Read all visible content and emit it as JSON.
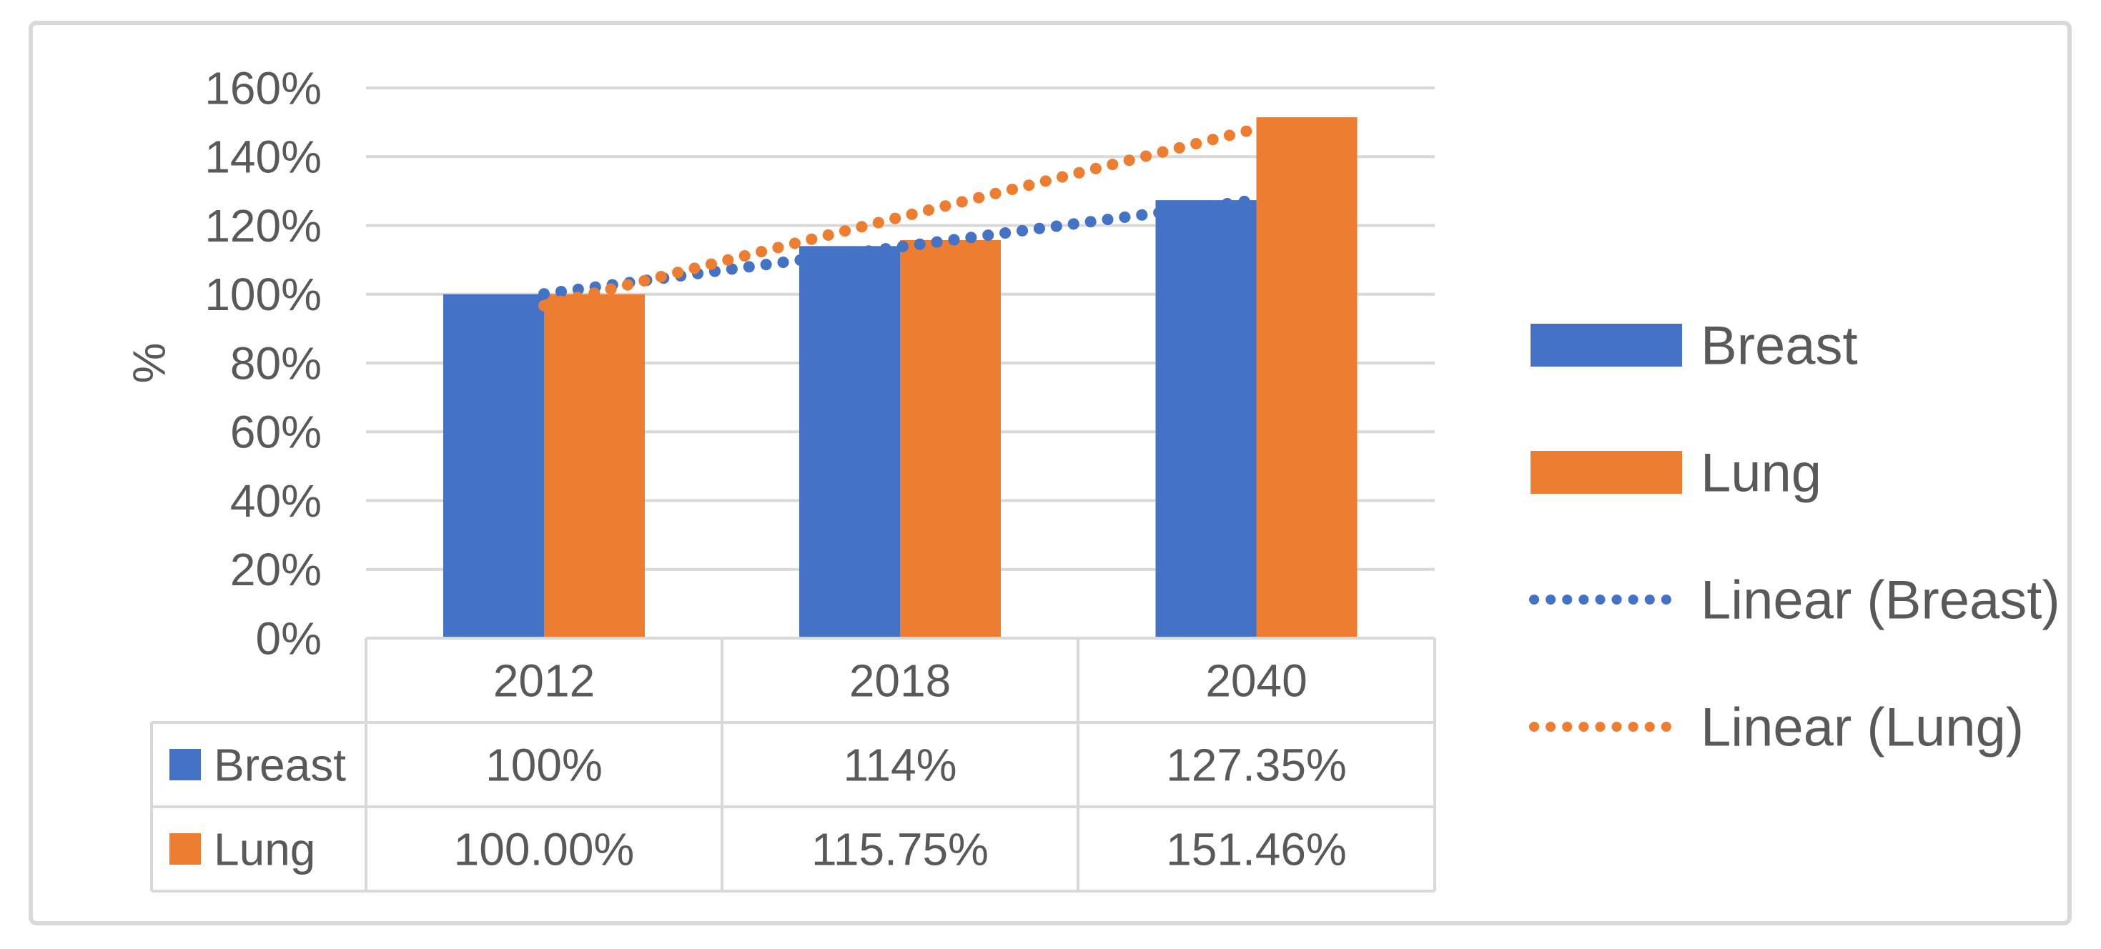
{
  "chart_data": {
    "type": "bar",
    "title": "",
    "categories": [
      "2012",
      "2018",
      "2040"
    ],
    "series": [
      {
        "name": "Breast",
        "color": "#4472C4",
        "values": [
          100,
          114,
          127.35
        ],
        "table_labels": [
          "100%",
          "114%",
          "127.35%"
        ],
        "trendline": {
          "type": "linear",
          "label": "Linear (Breast)"
        }
      },
      {
        "name": "Lung",
        "color": "#ED7D31",
        "values": [
          100,
          115.75,
          151.46
        ],
        "table_labels": [
          "100.00%",
          "115.75%",
          "151.46%"
        ],
        "trendline": {
          "type": "linear",
          "label": "Linear (Lung)"
        }
      }
    ],
    "xlabel": "",
    "ylabel": "%",
    "ylim": [
      0,
      160
    ],
    "ytick_step": 20,
    "ytick_labels": [
      "0%",
      "20%",
      "40%",
      "60%",
      "80%",
      "100%",
      "120%",
      "140%",
      "160%"
    ],
    "grid": true,
    "legend_position": "right",
    "legend_entries": [
      "Breast",
      "Lung",
      "Linear (Breast)",
      "Linear (Lung)"
    ],
    "data_table_shown": true
  },
  "colors": {
    "background": "#FFFFFF",
    "frame_border": "#D9D9D9",
    "gridline": "#D9D9D9",
    "table_border": "#D9D9D9",
    "text": "#595959"
  }
}
